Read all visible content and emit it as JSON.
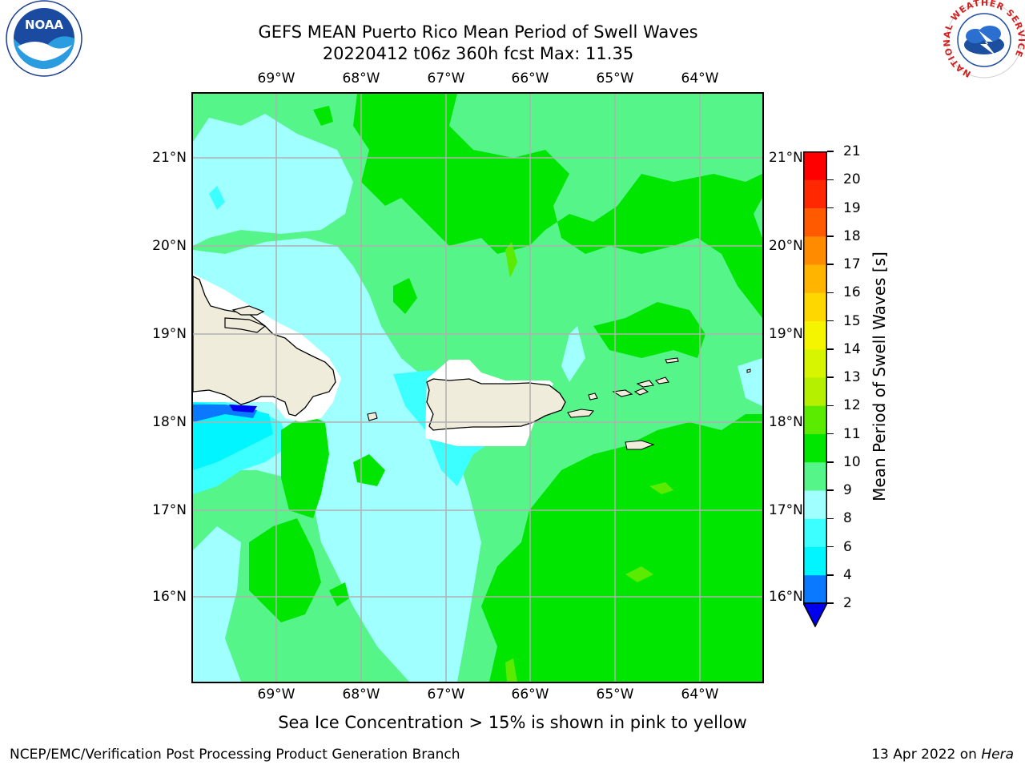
{
  "title": {
    "line1": "GEFS MEAN Puerto Rico Mean Period of Swell Waves",
    "line2": "20220412 t06z 360h fcst   Max: 11.35"
  },
  "axes": {
    "lon_labels": [
      "69°W",
      "68°W",
      "67°W",
      "66°W",
      "65°W",
      "64°W"
    ],
    "lat_labels": [
      "21°N",
      "20°N",
      "19°N",
      "18°N",
      "17°N",
      "16°N"
    ]
  },
  "colorbar": {
    "title": "Mean Period of Swell Waves [s]",
    "levels": [
      "2",
      "4",
      "6",
      "8",
      "9",
      "10",
      "11",
      "12",
      "13",
      "14",
      "15",
      "16",
      "17",
      "18",
      "19",
      "20",
      "21"
    ],
    "colors": [
      "#0000ee",
      "#0a78ff",
      "#00f5ff",
      "#3cffff",
      "#a0ffff",
      "#55f58a",
      "#00e600",
      "#5aeb00",
      "#b4f000",
      "#d8f500",
      "#f5f500",
      "#ffd700",
      "#ffb400",
      "#ff8c00",
      "#ff5a00",
      "#ff2800",
      "#ff0000"
    ]
  },
  "footnote": "Sea Ice Concentration > 15% is shown in pink to yellow",
  "credit": "NCEP/EMC/Verification Post Processing Product Generation Branch",
  "date": {
    "text": "13 Apr 2022 on",
    "host": "Hera"
  },
  "logos": {
    "left": "NOAA",
    "right_ring": "NATIONAL WEATHER SERVICE"
  },
  "map_colors": {
    "land": "#efecdc",
    "ice_free_mask": "#ffffff",
    "grid": "#b0b0b0",
    "coast": "#000000"
  }
}
